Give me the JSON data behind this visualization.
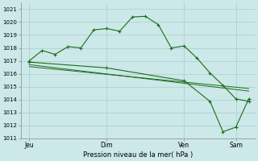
{
  "bg_color": "#cce8e8",
  "grid_color": "#aacccc",
  "line_color": "#1a6e1a",
  "xlabel": "Pression niveau de la mer( hPa )",
  "ylim": [
    1011,
    1021.5
  ],
  "yticks": [
    1011,
    1012,
    1013,
    1014,
    1015,
    1016,
    1017,
    1018,
    1019,
    1020,
    1021
  ],
  "xtick_labels": [
    "Jeu",
    "Dim",
    "Ven",
    "Sam"
  ],
  "xtick_positions": [
    0,
    36,
    72,
    96
  ],
  "xlim": [
    -4,
    105
  ],
  "main_x": [
    0,
    6,
    12,
    18,
    24,
    30,
    36,
    42,
    48,
    54,
    60,
    66,
    72,
    78,
    84,
    90,
    96,
    102
  ],
  "main_y": [
    1017.0,
    1017.8,
    1017.5,
    1018.1,
    1018.0,
    1019.4,
    1019.5,
    1019.3,
    1020.4,
    1020.45,
    1019.8,
    1018.0,
    1018.15,
    1017.2,
    1016.05,
    1015.1,
    1014.05,
    1013.85
  ],
  "line2_x": [
    0,
    36,
    72,
    84,
    90,
    96,
    102
  ],
  "line2_y": [
    1016.9,
    1016.45,
    1015.45,
    1013.85,
    1011.5,
    1011.85,
    1014.05
  ],
  "line3_x": [
    0,
    102
  ],
  "line3_y": [
    1016.7,
    1014.65
  ],
  "line4_x": [
    0,
    102
  ],
  "line4_y": [
    1016.55,
    1014.85
  ],
  "figsize": [
    3.2,
    2.0
  ],
  "dpi": 100
}
